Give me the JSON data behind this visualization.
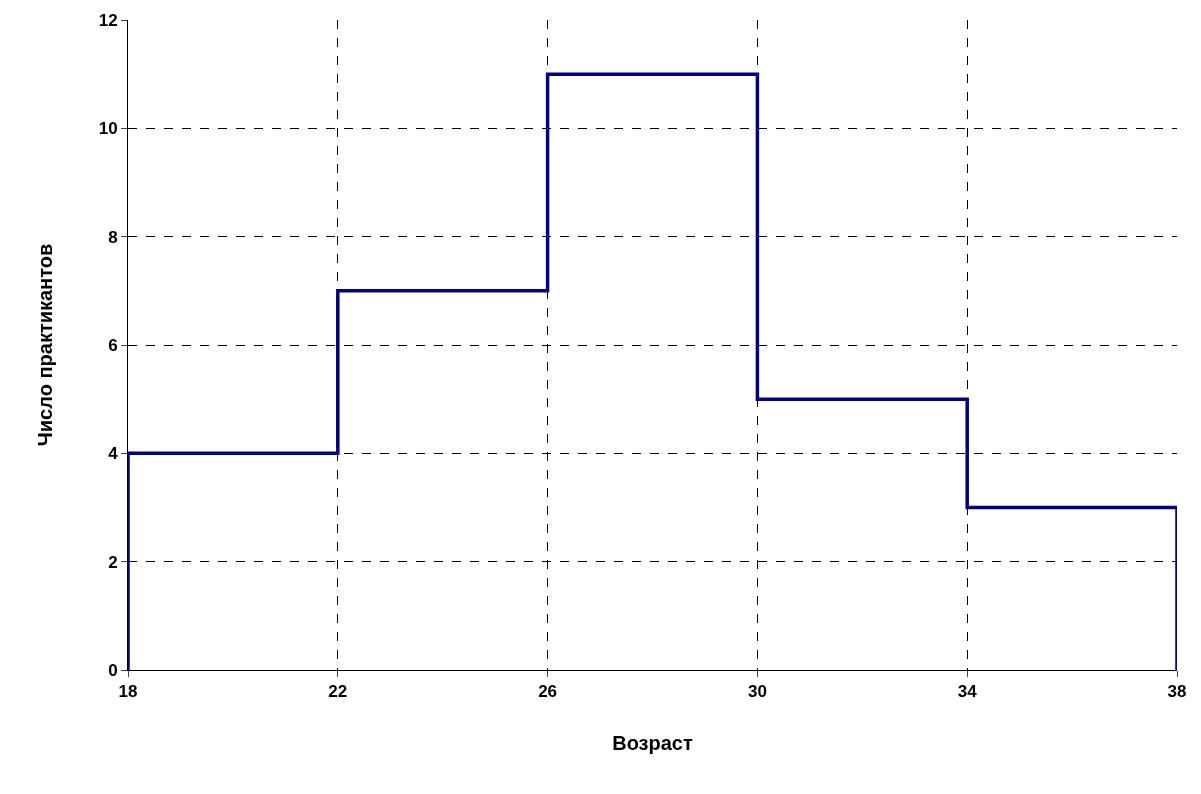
{
  "chart_data": {
    "type": "histogram",
    "xlabel": "Возраст",
    "ylabel": "Число практикантов",
    "bins": [
      18,
      22,
      26,
      30,
      34,
      38
    ],
    "values": [
      4,
      7,
      11,
      5,
      3
    ],
    "color": "#000080",
    "xlim": [
      18,
      38
    ],
    "xticks": [
      18,
      22,
      26,
      30,
      34,
      38
    ],
    "ylim": [
      0,
      12
    ],
    "yticks": [
      0,
      2,
      4,
      6,
      8,
      10,
      12
    ],
    "grid": true
  }
}
